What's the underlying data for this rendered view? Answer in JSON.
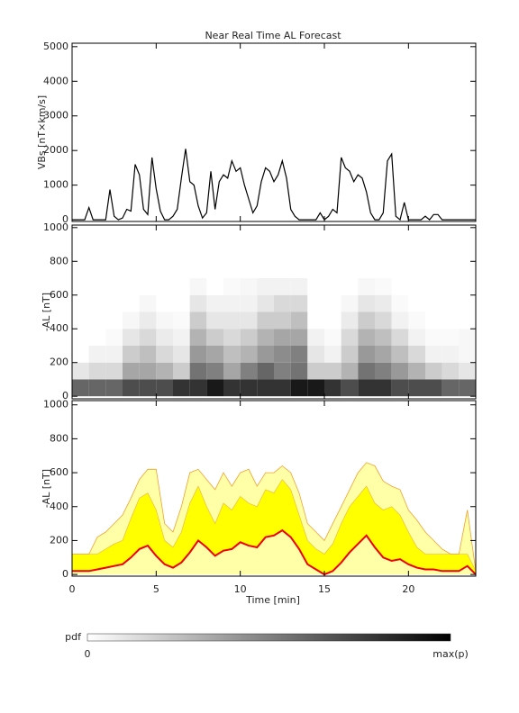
{
  "chart_data": [
    {
      "type": "line",
      "title": "Near Real Time AL Forecast",
      "y_label": "VBs [nT×km/s]",
      "xlim": [
        0,
        24
      ],
      "xticks": [
        0,
        5,
        10,
        15,
        20
      ],
      "ylim": [
        -50,
        5100
      ],
      "yticks": [
        0,
        1000,
        2000,
        3000,
        4000,
        5000
      ],
      "x": [
        0,
        0.25,
        0.5,
        0.75,
        1,
        1.25,
        1.5,
        1.75,
        2,
        2.25,
        2.5,
        2.75,
        3,
        3.25,
        3.5,
        3.75,
        4,
        4.25,
        4.5,
        4.75,
        5,
        5.25,
        5.5,
        5.75,
        6,
        6.25,
        6.5,
        6.75,
        7,
        7.25,
        7.5,
        7.75,
        8,
        8.25,
        8.5,
        8.75,
        9,
        9.25,
        9.5,
        9.75,
        10,
        10.25,
        10.5,
        10.75,
        11,
        11.25,
        11.5,
        11.75,
        12,
        12.25,
        12.5,
        12.75,
        13,
        13.25,
        13.5,
        13.75,
        14,
        14.25,
        14.5,
        14.75,
        15,
        15.25,
        15.5,
        15.75,
        16,
        16.25,
        16.5,
        16.75,
        17,
        17.25,
        17.5,
        17.75,
        18,
        18.25,
        18.5,
        18.75,
        19,
        19.25,
        19.5,
        19.75,
        20,
        20.25,
        20.5,
        20.75,
        21,
        21.25,
        21.5,
        21.75,
        22,
        22.25,
        22.5,
        22.75,
        23,
        23.25,
        23.5,
        23.75,
        24
      ],
      "series": [
        {
          "color": "#000000",
          "values": [
            0,
            0,
            0,
            0,
            350,
            0,
            0,
            0,
            0,
            870,
            100,
            0,
            50,
            300,
            250,
            1600,
            1300,
            300,
            150,
            1800,
            900,
            250,
            0,
            0,
            100,
            300,
            1200,
            2050,
            1100,
            1000,
            400,
            50,
            200,
            1400,
            300,
            1100,
            1300,
            1200,
            1700,
            1400,
            1500,
            1000,
            600,
            200,
            400,
            1100,
            1500,
            1400,
            1100,
            1300,
            1700,
            1200,
            300,
            100,
            0,
            0,
            0,
            0,
            0,
            200,
            0,
            100,
            300,
            200,
            1800,
            1500,
            1400,
            1100,
            1300,
            1200,
            800,
            200,
            0,
            0,
            200,
            1700,
            1900,
            100,
            0,
            500,
            0,
            0,
            0,
            0,
            100,
            0,
            150,
            150,
            0,
            0,
            0,
            0,
            0,
            0,
            0,
            0,
            0
          ]
        }
      ]
    },
    {
      "type": "heatmap",
      "y_label": "-AL [nT]",
      "xlim": [
        0,
        24
      ],
      "xticks": [
        0,
        5,
        10,
        15,
        20
      ],
      "ylim": [
        -15,
        1015
      ],
      "yticks": [
        0,
        200,
        400,
        600,
        800,
        1000
      ],
      "x_bins": [
        0,
        1,
        2,
        3,
        4,
        5,
        6,
        7,
        8,
        9,
        10,
        11,
        12,
        13,
        14,
        15,
        16,
        17,
        18,
        19,
        20,
        21,
        22,
        23,
        24
      ],
      "y_bins": [
        0,
        100,
        200,
        300,
        400,
        500,
        600,
        700
      ],
      "z": [
        [
          0.6,
          0.6,
          0.6,
          0.7,
          0.7,
          0.7,
          0.8,
          0.8,
          0.9,
          0.8,
          0.8,
          0.8,
          0.8,
          0.9,
          0.9,
          0.8,
          0.7,
          0.8,
          0.8,
          0.7,
          0.7,
          0.7,
          0.6,
          0.6
        ],
        [
          0.1,
          0.15,
          0.15,
          0.35,
          0.35,
          0.3,
          0.2,
          0.55,
          0.5,
          0.35,
          0.5,
          0.6,
          0.5,
          0.55,
          0.2,
          0.2,
          0.3,
          0.55,
          0.5,
          0.4,
          0.3,
          0.2,
          0.15,
          0.1
        ],
        [
          0,
          0.05,
          0.05,
          0.2,
          0.25,
          0.15,
          0.1,
          0.4,
          0.35,
          0.25,
          0.3,
          0.4,
          0.45,
          0.5,
          0.1,
          0.05,
          0.2,
          0.4,
          0.35,
          0.25,
          0.15,
          0.05,
          0.05,
          0.03
        ],
        [
          0,
          0,
          0.02,
          0.1,
          0.15,
          0.08,
          0.05,
          0.3,
          0.2,
          0.15,
          0.2,
          0.3,
          0.35,
          0.35,
          0.05,
          0.02,
          0.15,
          0.3,
          0.25,
          0.15,
          0.05,
          0.02,
          0.02,
          0.03
        ],
        [
          0,
          0,
          0,
          0.03,
          0.08,
          0.03,
          0.02,
          0.2,
          0.1,
          0.1,
          0.1,
          0.2,
          0.2,
          0.25,
          0,
          0,
          0.08,
          0.2,
          0.15,
          0.05,
          0.02,
          0,
          0,
          0
        ],
        [
          0,
          0,
          0,
          0,
          0.03,
          0,
          0,
          0.1,
          0.05,
          0.05,
          0.05,
          0.1,
          0.15,
          0.15,
          0,
          0,
          0.03,
          0.1,
          0.08,
          0.02,
          0,
          0,
          0,
          0
        ],
        [
          0,
          0,
          0,
          0,
          0,
          0,
          0,
          0.03,
          0,
          0.02,
          0.03,
          0.05,
          0.05,
          0.05,
          0,
          0,
          0,
          0.03,
          0.02,
          0,
          0,
          0,
          0,
          0
        ]
      ]
    },
    {
      "type": "area",
      "y_label": "-AL [nT]",
      "x_label": "Time [min]",
      "xlim": [
        0,
        24
      ],
      "xticks": [
        0,
        5,
        10,
        15,
        20
      ],
      "ylim": [
        -10,
        1025
      ],
      "yticks": [
        0,
        200,
        400,
        600,
        800,
        1000
      ],
      "x": [
        0,
        0.5,
        1,
        1.5,
        2,
        2.5,
        3,
        3.5,
        4,
        4.5,
        5,
        5.5,
        6,
        6.5,
        7,
        7.5,
        8,
        8.5,
        9,
        9.5,
        10,
        10.5,
        11,
        11.5,
        12,
        12.5,
        13,
        13.5,
        14,
        14.5,
        15,
        15.5,
        16,
        16.5,
        17,
        17.5,
        18,
        18.5,
        19,
        19.5,
        20,
        20.5,
        21,
        21.5,
        22,
        22.5,
        23,
        23.5,
        24
      ],
      "series": [
        {
          "color": "#ffffa8",
          "values": [
            120,
            120,
            120,
            220,
            250,
            300,
            350,
            450,
            560,
            620,
            620,
            300,
            250,
            400,
            600,
            620,
            560,
            500,
            600,
            520,
            600,
            620,
            520,
            600,
            600,
            640,
            600,
            480,
            300,
            250,
            200,
            300,
            400,
            500,
            600,
            660,
            640,
            550,
            520,
            500,
            380,
            320,
            250,
            200,
            150,
            120,
            120,
            380,
            20
          ]
        },
        {
          "color": "#ffff00",
          "values": [
            120,
            120,
            120,
            120,
            150,
            180,
            200,
            330,
            450,
            480,
            380,
            200,
            160,
            250,
            420,
            520,
            400,
            300,
            420,
            380,
            460,
            420,
            400,
            500,
            480,
            560,
            500,
            350,
            200,
            150,
            120,
            180,
            300,
            400,
            460,
            520,
            420,
            380,
            400,
            350,
            250,
            160,
            120,
            120,
            120,
            120,
            120,
            120,
            20
          ]
        },
        {
          "color": "#ee0000",
          "values": [
            20,
            20,
            20,
            30,
            40,
            50,
            60,
            100,
            150,
            170,
            110,
            60,
            40,
            70,
            130,
            200,
            160,
            110,
            140,
            150,
            190,
            170,
            160,
            220,
            230,
            260,
            220,
            150,
            60,
            30,
            0,
            20,
            70,
            130,
            180,
            230,
            160,
            100,
            80,
            90,
            60,
            40,
            30,
            30,
            20,
            20,
            20,
            50,
            0
          ]
        }
      ]
    }
  ],
  "colorbar": {
    "label": "pdf",
    "min_label": "0",
    "max_label": "max(p)"
  }
}
